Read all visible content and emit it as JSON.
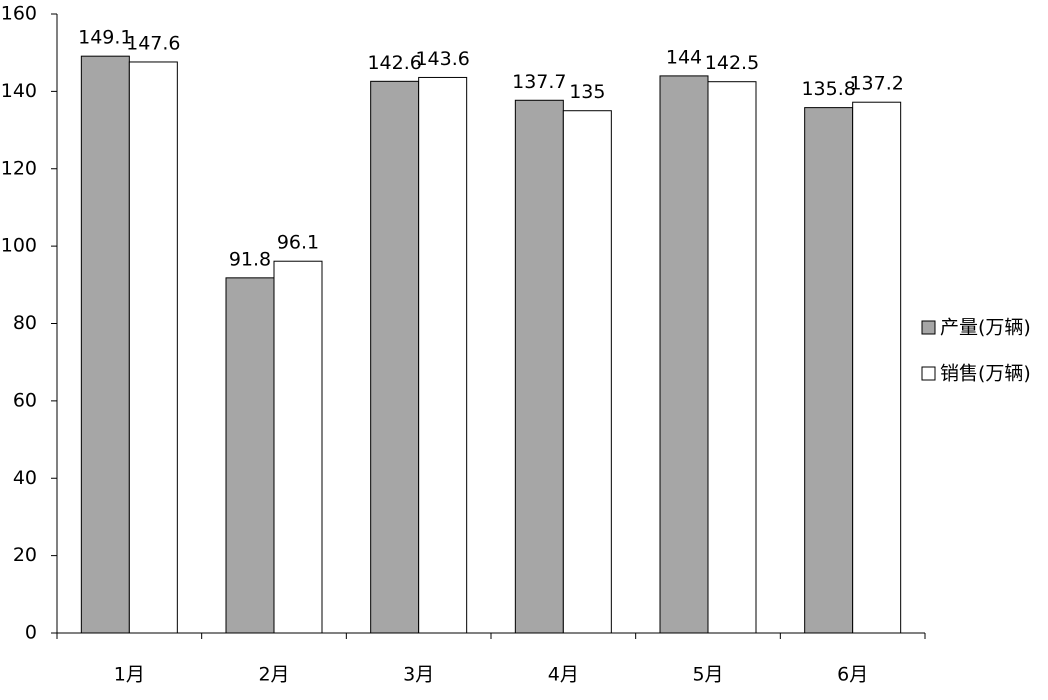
{
  "chart_data": {
    "type": "bar",
    "categories": [
      "1月",
      "2月",
      "3月",
      "4月",
      "5月",
      "6月"
    ],
    "series": [
      {
        "name": "产量(万辆)",
        "color": "#a6a6a6",
        "values": [
          149.1,
          91.8,
          142.6,
          137.7,
          144,
          135.8
        ]
      },
      {
        "name": "销售(万辆)",
        "color": "#ffffff",
        "values": [
          147.6,
          96.1,
          143.6,
          135,
          142.5,
          137.2
        ]
      }
    ],
    "ylim": [
      0,
      160
    ],
    "yticks": [
      0,
      20,
      40,
      60,
      80,
      100,
      120,
      140,
      160
    ],
    "grid": false,
    "legend": "right"
  }
}
